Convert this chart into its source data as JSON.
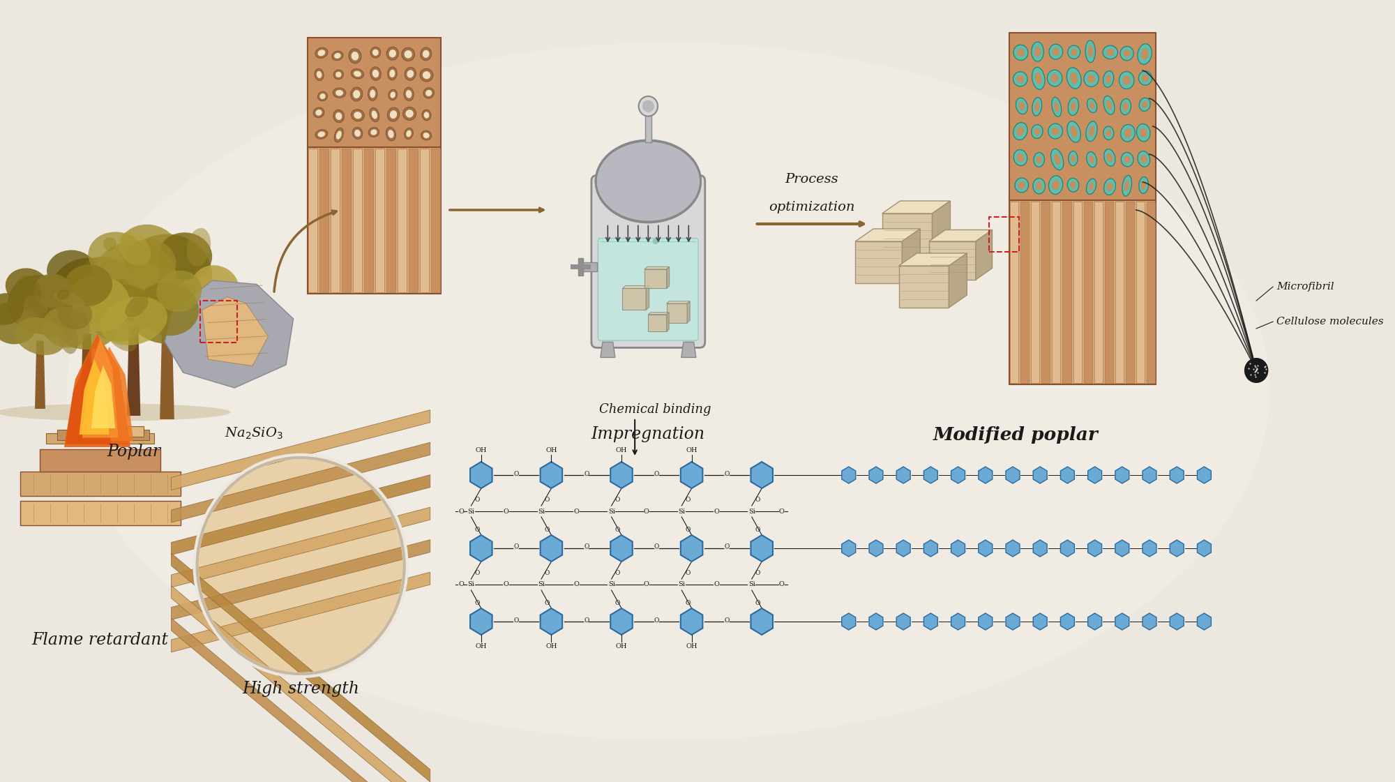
{
  "background_color": "#ede8df",
  "background_gradient_top": "#f5f0e8",
  "background_gradient_bottom": "#d8cec0",
  "labels": {
    "poplar": "Poplar",
    "na2sio3": "Na$_2$SiO$_3$",
    "impregnation": "Impregnation",
    "process_opt_line1": "Process",
    "process_opt_line2": "optimization",
    "modified_poplar": "Modified poplar",
    "microfibril": "Microfibril",
    "cellulose": "Cellulose molecules",
    "chemical_binding": "Chemical binding",
    "flame_retardant": "Flame retardant",
    "high_strength": "High strength"
  },
  "arrow_color": "#8B6530",
  "text_color": "#1a1a1a",
  "blue_hex_color": "#6aaad4",
  "blue_hex_edge": "#2a6aa0",
  "teal_color": "#5abfb0",
  "teal_edge": "#2a8070",
  "wood_bg": "#c8966a",
  "wood_cell_fill": "#d4a878",
  "wood_tube_fill": "#e0bc8a",
  "wood_edge": "#8B5030",
  "vessel_body": "#d0d0d0",
  "vessel_dome": "#b8b8b8",
  "vessel_liquid": "#b8e8e0",
  "stone_color": "#a0a0a8",
  "flame_outer": "#e87820",
  "flame_inner": "#ffc820"
}
